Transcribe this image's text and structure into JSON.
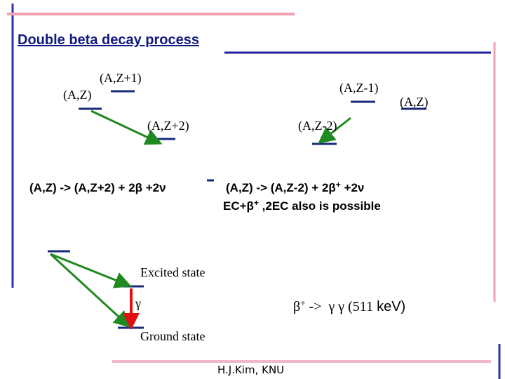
{
  "title": "Double beta decay process",
  "levels": {
    "left_z": "(A,Z)",
    "z_plus_1": "(A,Z+1)",
    "z_plus_2": "(A,Z+2)",
    "z_minus_1": "(A,Z-1)",
    "right_z": "(A,Z)",
    "z_minus_2": "(A,Z-2)"
  },
  "beta_minus_equation": "(A,Z) -> (A,Z+2) + 2β +2ν",
  "beta_plus_equation": {
    "main": "(A,Z) -> (A,Z-2) + 2β",
    "superscript": "+",
    "tail": " +2ν"
  },
  "ec_note": {
    "main": "EC+β",
    "superscript": "+",
    "tail": " ,2EC also is possible"
  },
  "gamma_diagram": {
    "excited": "Excited state",
    "gamma": "γ",
    "ground": "Ground state"
  },
  "annihilation": {
    "beta": "β",
    "superscript": "+",
    "middle": " ->  γ γ (511 ",
    "unit": "keV)"
  },
  "footer": "H.J.Kim, KNU"
}
